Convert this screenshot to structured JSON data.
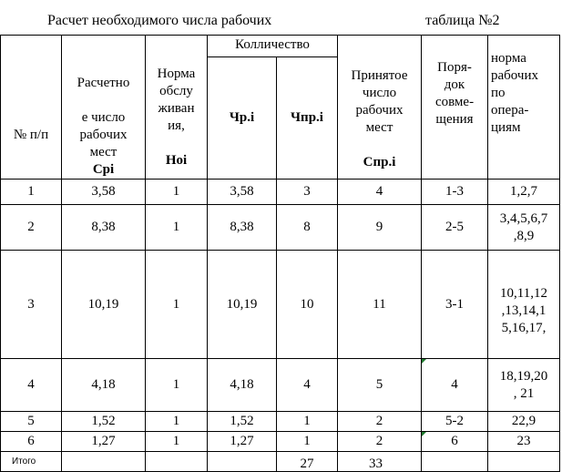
{
  "title": "Расчет необходимого числа рабочих",
  "table_no": "таблица №2",
  "headers": {
    "num": "№ п/п",
    "calc_line1": "Расчетно",
    "calc_rest": "е число\nрабочих\nмест",
    "calc_sym": "Cрі",
    "norm_text": "Норма\nобслу\nживан\nия,",
    "norm_sym": "Ноі",
    "qty": "Колличество",
    "chr": "Чр.і",
    "chpr": "Чпр.і",
    "accepted_text": "Принятое\nчисло\nрабочих\nмест",
    "accepted_sym": "Спр.і",
    "order": "Поря-\nдок\nсовме-\nщения",
    "ops": "норма\nрабочих\nпо\nопера-\nциям"
  },
  "rows": [
    {
      "num": "1",
      "calc": "3,58",
      "norm": "1",
      "chr": "3,58",
      "chpr": "3",
      "accepted": "4",
      "order": "1-3",
      "ops": "1,2,7"
    },
    {
      "num": "2",
      "calc": "8,38",
      "norm": "1",
      "chr": "8,38",
      "chpr": "8",
      "accepted": "9",
      "order": "2-5",
      "ops": "3,4,5,6,7\n,8,9"
    },
    {
      "num": "3",
      "calc": "10,19",
      "norm": "1",
      "chr": "10,19",
      "chpr": "10",
      "accepted": "11",
      "order": "3-1",
      "ops": "10,11,12\n,13,14,1\n5,16,17,\n"
    },
    {
      "num": "4",
      "calc": "4,18",
      "norm": "1",
      "chr": "4,18",
      "chpr": "4",
      "accepted": "5",
      "order": "4",
      "ops": "18,19,20\n, 21"
    },
    {
      "num": "5",
      "calc": "1,52",
      "norm": "1",
      "chr": "1,52",
      "chpr": "1",
      "accepted": "2",
      "order": "5-2",
      "ops": "22,9"
    },
    {
      "num": "6",
      "calc": "1,27",
      "norm": "1",
      "chr": "1,27",
      "chpr": "1",
      "accepted": "2",
      "order": "6",
      "ops": "23"
    }
  ],
  "total": {
    "label": "Итого",
    "chpr": "27",
    "accepted": "33"
  },
  "colors": {
    "cell_marker": "#1f7a2e"
  }
}
